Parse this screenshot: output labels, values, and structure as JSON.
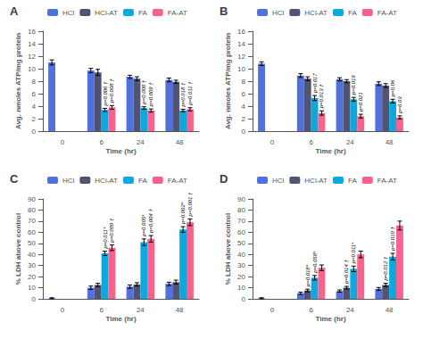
{
  "chart_data": [
    {
      "type": "bar",
      "title": "A",
      "xlabel": "Time (hr)",
      "ylabel": "Avg. nmoles ATP/mg protein",
      "categories": [
        "0",
        "6",
        "24",
        "48"
      ],
      "series": [
        {
          "name": "HCl",
          "values": [
            11.0,
            9.7,
            8.7,
            8.2
          ],
          "errors": [
            0.4,
            0.35,
            0.25,
            0.3
          ]
        },
        {
          "name": "HCl-AT",
          "values": [
            null,
            9.4,
            8.4,
            7.9
          ],
          "errors": [
            null,
            0.5,
            0.3,
            0.25
          ]
        },
        {
          "name": "FA",
          "values": [
            null,
            3.4,
            3.7,
            3.3
          ],
          "errors": [
            null,
            0.25,
            0.2,
            0.2
          ]
        },
        {
          "name": "FA-AT",
          "values": [
            null,
            3.8,
            3.3,
            3.5
          ],
          "errors": [
            null,
            0.3,
            0.25,
            0.25
          ]
        }
      ],
      "ylim": [
        0,
        16
      ],
      "yticks": [
        0,
        2,
        4,
        6,
        8,
        10,
        12,
        14,
        16
      ],
      "grid": false,
      "legend": "upper left",
      "annotations": [
        {
          "series": "FA",
          "category": "6",
          "text": "p=0.006 †"
        },
        {
          "series": "FA",
          "category": "24",
          "text": "p=0.000 †"
        },
        {
          "series": "FA",
          "category": "48",
          "text": "p=0.018 †"
        },
        {
          "series": "FA-AT",
          "category": "6",
          "text": "p=0.008 †"
        },
        {
          "series": "FA-AT",
          "category": "24",
          "text": "p=0.009 †"
        },
        {
          "series": "FA-AT",
          "category": "48",
          "text": "p=0.011 †"
        }
      ]
    },
    {
      "type": "bar",
      "title": "B",
      "xlabel": "Time (hr)",
      "ylabel": "Avg. nmoles ATP/mg protein",
      "categories": [
        "0",
        "6",
        "24",
        "48"
      ],
      "series": [
        {
          "name": "HCl",
          "values": [
            10.8,
            8.9,
            8.3,
            7.6
          ],
          "errors": [
            0.3,
            0.3,
            0.25,
            0.3
          ]
        },
        {
          "name": "HCl-AT",
          "values": [
            null,
            8.4,
            8.0,
            7.3
          ],
          "errors": [
            null,
            0.3,
            0.25,
            0.3
          ]
        },
        {
          "name": "FA",
          "values": [
            null,
            5.3,
            5.1,
            4.8
          ],
          "errors": [
            null,
            0.4,
            0.3,
            0.3
          ]
        },
        {
          "name": "FA-AT",
          "values": [
            null,
            2.9,
            2.4,
            2.2
          ],
          "errors": [
            null,
            0.35,
            0.3,
            0.25
          ]
        }
      ],
      "ylim": [
        0,
        16
      ],
      "yticks": [
        0,
        2,
        4,
        6,
        8,
        10,
        12,
        14,
        16
      ],
      "grid": false,
      "legend": "upper left",
      "annotations": [
        {
          "series": "FA",
          "category": "6",
          "text": "p=0.017"
        },
        {
          "series": "FA",
          "category": "24",
          "text": "p=0.019"
        },
        {
          "series": "FA",
          "category": "48",
          "text": "p=0.06"
        },
        {
          "series": "FA-AT",
          "category": "6",
          "text": "p=0.013 †"
        },
        {
          "series": "FA-AT",
          "category": "24",
          "text": "p=0.021"
        },
        {
          "series": "FA-AT",
          "category": "48",
          "text": "p=0.03"
        }
      ]
    },
    {
      "type": "bar",
      "title": "C",
      "xlabel": "Time (hr)",
      "ylabel": "% LDH above control",
      "categories": [
        "0",
        "6",
        "24",
        "48"
      ],
      "series": [
        {
          "name": "HCl",
          "values": [
            0.5,
            10.0,
            11.0,
            13.5
          ],
          "errors": [
            0.5,
            1.5,
            1.5,
            1.5
          ]
        },
        {
          "name": "HCl-AT",
          "values": [
            null,
            12.5,
            13.0,
            15.0
          ],
          "errors": [
            null,
            1.5,
            1.5,
            1.8
          ]
        },
        {
          "name": "FA",
          "values": [
            null,
            41.0,
            51.0,
            62.5
          ],
          "errors": [
            null,
            2.0,
            3.0,
            2.5
          ]
        },
        {
          "name": "FA-AT",
          "values": [
            null,
            46.0,
            54.0,
            69.0
          ],
          "errors": [
            null,
            2.5,
            3.0,
            3.0
          ]
        }
      ],
      "ylim": [
        0,
        90
      ],
      "yticks": [
        0,
        10,
        20,
        30,
        40,
        50,
        60,
        70,
        80,
        90
      ],
      "grid": false,
      "legend": "upper left",
      "annotations": [
        {
          "series": "FA",
          "category": "6",
          "text": "p=0.011*"
        },
        {
          "series": "FA",
          "category": "24",
          "text": "p=0.005*"
        },
        {
          "series": "FA",
          "category": "48",
          "text": "p=0.002*"
        },
        {
          "series": "FA-AT",
          "category": "6",
          "text": "p=0.009 †"
        },
        {
          "series": "FA-AT",
          "category": "24",
          "text": "p=0.004 †"
        },
        {
          "series": "FA-AT",
          "category": "48",
          "text": "p=0.001 †"
        }
      ]
    },
    {
      "type": "bar",
      "title": "D",
      "xlabel": "Time (hr)",
      "ylabel": "% LDH above control",
      "categories": [
        "0",
        "6",
        "24",
        "48"
      ],
      "series": [
        {
          "name": "HCl",
          "values": [
            0.5,
            5.0,
            7.0,
            9.0
          ],
          "errors": [
            0.5,
            1.0,
            1.0,
            1.2
          ]
        },
        {
          "name": "HCl-AT",
          "values": [
            null,
            7.5,
            10.0,
            12.5
          ],
          "errors": [
            null,
            1.2,
            1.2,
            1.5
          ]
        },
        {
          "name": "FA",
          "values": [
            null,
            19.0,
            27.0,
            38.0
          ],
          "errors": [
            null,
            2.0,
            2.5,
            3.0
          ]
        },
        {
          "name": "FA-AT",
          "values": [
            null,
            28.0,
            40.0,
            66.0
          ],
          "errors": [
            null,
            2.5,
            3.0,
            4.0
          ]
        }
      ],
      "ylim": [
        0,
        90
      ],
      "yticks": [
        0,
        10,
        20,
        30,
        40,
        50,
        60,
        70,
        80,
        90
      ],
      "grid": false,
      "legend": "upper left",
      "annotations": [
        {
          "series": "HCl-AT",
          "category": "6",
          "text": "p=0.018*"
        },
        {
          "series": "HCl-AT",
          "category": "24",
          "text": "p=0.014 †"
        },
        {
          "series": "HCl-AT",
          "category": "48",
          "text": "p=0.012 †"
        },
        {
          "series": "FA",
          "category": "6",
          "text": "p=0.058*"
        },
        {
          "series": "FA",
          "category": "24",
          "text": "p=0.011*"
        },
        {
          "series": "FA",
          "category": "48",
          "text": "p=0.010 †"
        }
      ]
    }
  ]
}
